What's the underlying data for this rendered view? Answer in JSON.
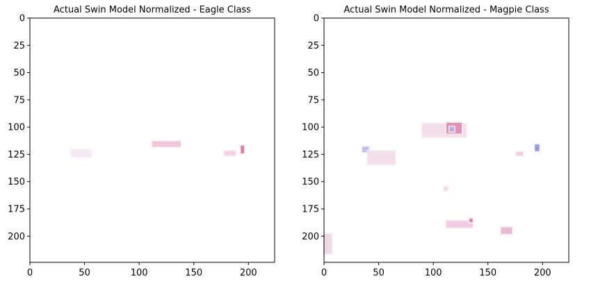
{
  "chart_data": [
    {
      "type": "heatmap",
      "title": "Actual Swin Model Normalized - Eagle Class",
      "xlabel": "",
      "ylabel": "",
      "xlim": [
        0,
        224
      ],
      "ylim": [
        224,
        0
      ],
      "x_ticks": [
        0,
        50,
        100,
        150,
        200
      ],
      "y_ticks": [
        0,
        25,
        50,
        75,
        100,
        125,
        150,
        175,
        200
      ],
      "grid": false,
      "colors": {
        "positive": "#c0175a",
        "negative": "#3b4cc0",
        "faint": "#f6ecf7"
      },
      "hotspots": [
        {
          "x": 38,
          "y": 121,
          "w": 18,
          "h": 6,
          "intensity": 0.05,
          "sign": "positive"
        },
        {
          "x": 112,
          "y": 113,
          "w": 26,
          "h": 5,
          "intensity": 0.35,
          "sign": "positive"
        },
        {
          "x": 178,
          "y": 122,
          "w": 10,
          "h": 4,
          "intensity": 0.25,
          "sign": "positive"
        },
        {
          "x": 193,
          "y": 117,
          "w": 3,
          "h": 7,
          "intensity": 0.95,
          "sign": "positive"
        }
      ]
    },
    {
      "type": "heatmap",
      "title": "Actual Swin Model Normalized - Magpie Class",
      "xlabel": "",
      "ylabel": "",
      "xlim": [
        0,
        224
      ],
      "ylim": [
        224,
        0
      ],
      "x_ticks": [
        0,
        50,
        100,
        150,
        200
      ],
      "y_ticks": [
        0,
        25,
        50,
        75,
        100,
        125,
        150,
        175,
        200
      ],
      "grid": false,
      "colors": {
        "positive": "#c0175a",
        "negative": "#3b4cc0",
        "faint": "#f6ecf7"
      },
      "hotspots": [
        {
          "x": 90,
          "y": 97,
          "w": 40,
          "h": 12,
          "intensity": 0.15,
          "sign": "positive"
        },
        {
          "x": 112,
          "y": 96,
          "w": 14,
          "h": 10,
          "intensity": 0.75,
          "sign": "positive"
        },
        {
          "x": 115,
          "y": 100,
          "w": 4,
          "h": 4,
          "intensity": 0.6,
          "sign": "negative"
        },
        {
          "x": 35,
          "y": 118,
          "w": 6,
          "h": 5,
          "intensity": 0.55,
          "sign": "negative"
        },
        {
          "x": 40,
          "y": 122,
          "w": 25,
          "h": 12,
          "intensity": 0.15,
          "sign": "positive"
        },
        {
          "x": 193,
          "y": 116,
          "w": 4,
          "h": 6,
          "intensity": 0.95,
          "sign": "negative"
        },
        {
          "x": 176,
          "y": 123,
          "w": 6,
          "h": 3,
          "intensity": 0.3,
          "sign": "positive"
        },
        {
          "x": 110,
          "y": 155,
          "w": 3,
          "h": 3,
          "intensity": 0.2,
          "sign": "positive"
        },
        {
          "x": 112,
          "y": 186,
          "w": 24,
          "h": 6,
          "intensity": 0.3,
          "sign": "positive"
        },
        {
          "x": 133,
          "y": 184,
          "w": 3,
          "h": 3,
          "intensity": 0.9,
          "sign": "positive"
        },
        {
          "x": 162,
          "y": 192,
          "w": 10,
          "h": 6,
          "intensity": 0.45,
          "sign": "positive"
        },
        {
          "x": 0,
          "y": 198,
          "w": 7,
          "h": 18,
          "intensity": 0.2,
          "sign": "positive"
        }
      ]
    }
  ]
}
